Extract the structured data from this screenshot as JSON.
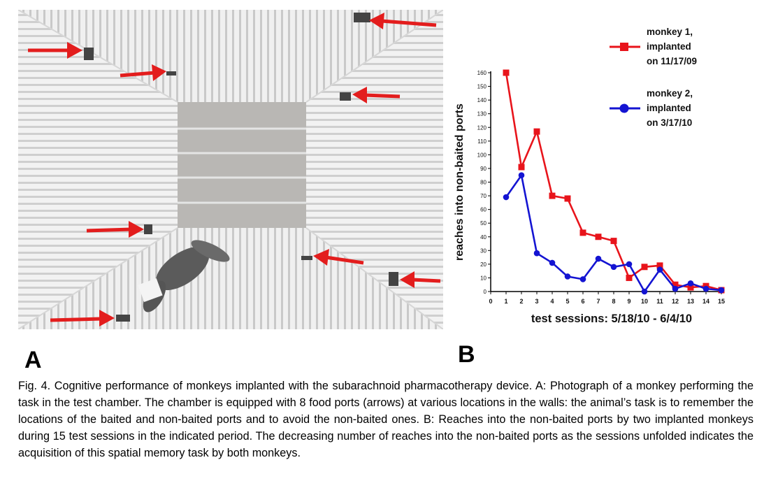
{
  "figure": {
    "panel_a_label": "A",
    "panel_b_label": "B",
    "caption": "Fig. 4. Cognitive performance of monkeys implanted with the subarachnoid pharmacotherapy device.  A: Photograph of a monkey performing the task in the test chamber.  The chamber is equipped with 8 food ports (arrows) at various locations in the walls: the animal’s task is to remember the locations of the baited and non-baited ports and to avoid the non-baited ones.  B: Reaches into the non-baited ports by two implanted monkeys during 15 test sessions in the indicated period.  The decreasing number of reaches into the non-baited ports as the sessions unfolded indicates the acquisition of this spatial memory task by both monkeys."
  },
  "colors": {
    "monkey1": "#e8141b",
    "monkey2": "#1414d2",
    "arrow": "#e31d1d"
  },
  "chart_data": {
    "type": "line",
    "title": "",
    "xlabel": "test sessions:  5/18/10 - 6/4/10",
    "ylabel": "reaches into non-baited ports",
    "xlim": [
      0,
      15
    ],
    "ylim": [
      0,
      160
    ],
    "x_ticks": [
      0,
      1,
      2,
      3,
      4,
      5,
      6,
      7,
      8,
      9,
      10,
      11,
      12,
      13,
      14,
      15
    ],
    "y_ticks": [
      0,
      10,
      20,
      30,
      40,
      50,
      60,
      70,
      80,
      90,
      100,
      110,
      120,
      130,
      140,
      150,
      160
    ],
    "grid": false,
    "legend_position": "top-right",
    "series": [
      {
        "name": "monkey 1,\nimplanted\non 11/17/09",
        "marker": "square",
        "x": [
          1,
          2,
          3,
          4,
          5,
          6,
          7,
          8,
          9,
          10,
          11,
          12,
          13,
          14,
          15
        ],
        "values": [
          160,
          91,
          117,
          70,
          68,
          43,
          40,
          37,
          10,
          18,
          19,
          5,
          3,
          4,
          1
        ]
      },
      {
        "name": "monkey 2,\nimplanted\non 3/17/10",
        "marker": "circle",
        "x": [
          1,
          2,
          3,
          4,
          5,
          6,
          7,
          8,
          9,
          10,
          11,
          12,
          13,
          14,
          15
        ],
        "values": [
          69,
          85,
          28,
          21,
          11,
          9,
          24,
          18,
          20,
          0,
          16,
          2,
          6,
          2,
          1
        ]
      }
    ]
  }
}
